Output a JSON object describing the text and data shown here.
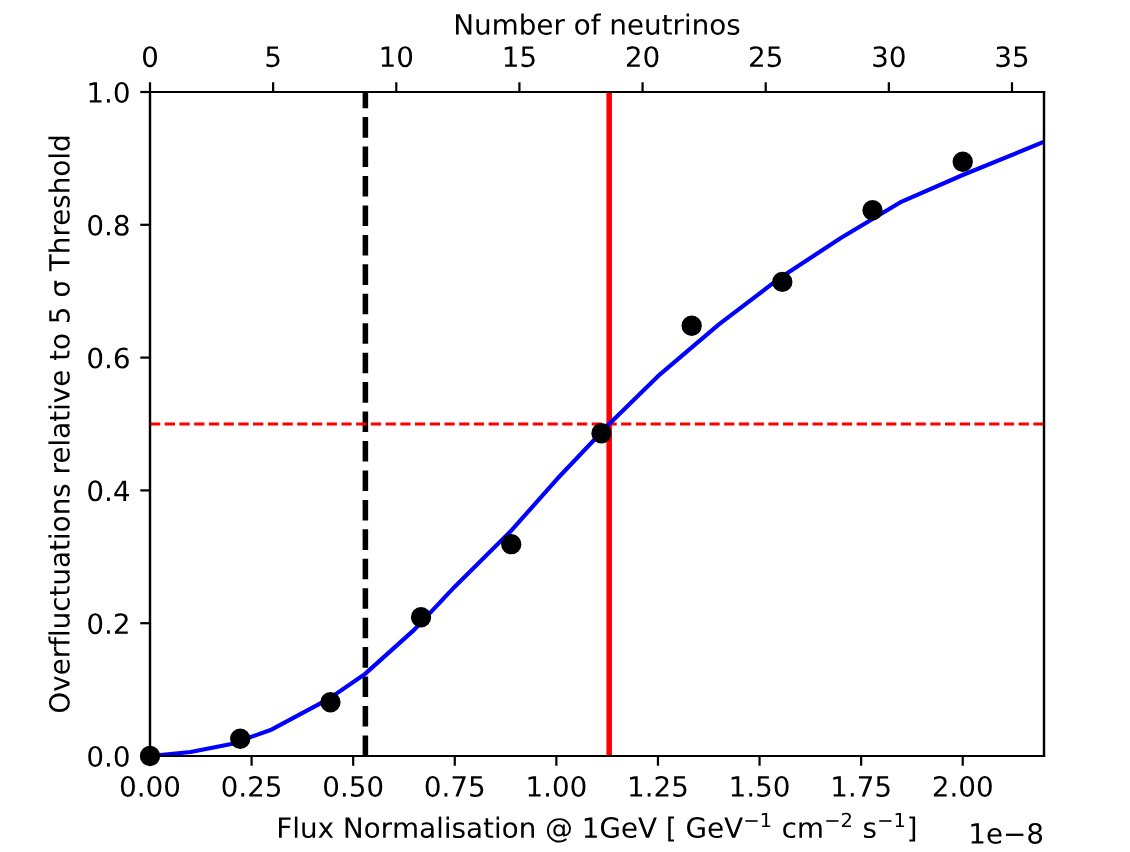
{
  "chart_data": {
    "type": "scatter",
    "xlabel": "Flux Normalisation @ 1GeV [ GeV$^{−1}$ cm$^{−2}$ s$^{−1}$]",
    "ylabel": "Overfluctuations relative to 5 σ Threshold",
    "x2label": "Number of neutrinos",
    "annotations": [
      "1e−8"
    ],
    "series": [
      {
        "type": "line",
        "color": "#0000ff",
        "marker": "none",
        "line_style": "solid",
        "x": [
          0,
          0.1,
          0.2,
          0.3,
          0.44,
          0.53,
          0.65,
          0.75,
          0.89,
          1.0,
          1.13,
          1.25,
          1.4,
          1.55,
          1.7,
          1.85,
          2.0,
          2.2
        ],
        "values": [
          0,
          0.006,
          0.018,
          0.04,
          0.086,
          0.124,
          0.19,
          0.255,
          0.34,
          0.416,
          0.5,
          0.572,
          0.65,
          0.72,
          0.78,
          0.835,
          0.875,
          0.925
        ]
      },
      {
        "color": "#000000",
        "marker": "circle",
        "x": [
          0,
          0.222,
          0.444,
          0.667,
          0.889,
          1.111,
          1.333,
          1.556,
          1.778,
          2.0
        ],
        "values": [
          0,
          0.026,
          0.081,
          0.209,
          0.319,
          0.486,
          0.648,
          0.714,
          0.822,
          0.895
        ]
      }
    ],
    "xlim": [
      0,
      2.2
    ],
    "xticks": [
      {
        "value": 0,
        "label": "0.00"
      },
      {
        "value": 0.25,
        "label": "0.25"
      },
      {
        "value": 0.5,
        "label": "0.50"
      },
      {
        "value": 0.75,
        "label": "0.75"
      },
      {
        "value": 1.0,
        "label": "1.00"
      },
      {
        "value": 1.25,
        "label": "1.25"
      },
      {
        "value": 1.5,
        "label": "1.50"
      },
      {
        "value": 1.75,
        "label": "1.75"
      },
      {
        "value": 2.0,
        "label": "2.00"
      }
    ],
    "ylim": [
      0,
      1
    ],
    "yticks": [
      {
        "value": 0,
        "label": "0.0"
      },
      {
        "value": 0.2,
        "label": "0.2"
      },
      {
        "value": 0.4,
        "label": "0.4"
      },
      {
        "value": 0.6,
        "label": "0.6"
      },
      {
        "value": 0.8,
        "label": "0.8"
      },
      {
        "value": 1.0,
        "label": "1.0"
      }
    ],
    "x2lim": [
      0,
      36.3
    ],
    "x2ticks": [
      0,
      5,
      10,
      15,
      20,
      25,
      30,
      35
    ],
    "ref_lines": [
      {
        "axis": "x",
        "value": 0.53,
        "color": "#000000",
        "line_style": "dashed"
      },
      {
        "axis": "x",
        "value": 1.13,
        "color": "#ff0000",
        "line_style": "solid"
      },
      {
        "axis": "y",
        "value": 0.5,
        "color": "#ff0000",
        "line_style": "dashed"
      }
    ],
    "grid": false,
    "legend": false
  }
}
